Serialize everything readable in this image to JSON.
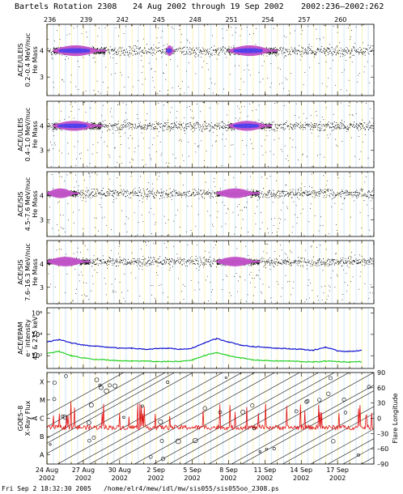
{
  "header": {
    "title": "Bartels Rotation 2308",
    "date_range": "24 Aug 2002 through 19 Sep 2002",
    "doy_range": "2002:236–2002:262"
  },
  "footer": {
    "timestamp": "Fri Sep  2 18:32:30 2005",
    "path": "/home/elr4/mew/idl/mw/sis055/sis055oo_2308.ps"
  },
  "colors": {
    "background_stripe_yellow": "#f8f3b8",
    "background_stripe_blue": "#cfe7f3",
    "density_low": "#000000",
    "density_mid": "#c255c9",
    "density_high": "#3f3ff2",
    "epam_upper": "#1010d0",
    "epam_lower": "#22d022",
    "goes_xray": "#e01010"
  },
  "chart_data": [
    {
      "type": "scatter",
      "panel": "ULEIS 0.2-0.4",
      "ylabel": [
        "ACE/ULEIS",
        "0.2–0.4 MeV/nuc",
        "He Mass"
      ],
      "yticks": [
        "4",
        "3"
      ],
      "bartels_days": [
        "236",
        "239",
        "242",
        "245",
        "248",
        "251",
        "254",
        "257",
        "260"
      ],
      "main_band_mass": 4,
      "secondary_band_mass": 3,
      "dense_intervals_days": [
        [
          236.5,
          240.8
        ],
        [
          251.0,
          255.0
        ],
        [
          245.8,
          246.4
        ]
      ]
    },
    {
      "type": "scatter",
      "panel": "ULEIS 0.4-1.0",
      "ylabel": [
        "ACE/ULEIS",
        "0.4–1.0 MeV/nuc",
        "He Mass"
      ],
      "yticks": [
        "4",
        "3"
      ],
      "main_band_mass": 4,
      "secondary_band_mass": 3,
      "dense_intervals_days": [
        [
          236.5,
          240.5
        ],
        [
          251.0,
          254.5
        ]
      ]
    },
    {
      "type": "scatter",
      "panel": "SIS 4.5-7.6",
      "ylabel": [
        "ACE/SIS",
        "4.5–7.6 MeV/nuc",
        "He Mass"
      ],
      "yticks": [
        "4",
        "3"
      ],
      "main_band_mass": 4.1,
      "secondary_band_mass": 3,
      "dense_intervals_days": [
        [
          236.0,
          238.5
        ],
        [
          250.0,
          253.5
        ]
      ]
    },
    {
      "type": "scatter",
      "panel": "SIS 7.6-16.3",
      "ylabel": [
        "ACE/SIS",
        "7.6–16.3 MeV/nuc",
        "He Mass"
      ],
      "yticks": [
        "4",
        "3"
      ],
      "main_band_mass": 4.1,
      "secondary_band_mass": 3,
      "dense_intervals_days": [
        [
          236.0,
          239.5
        ],
        [
          250.0,
          253.5
        ]
      ]
    },
    {
      "type": "line",
      "panel": "EPAM",
      "ylabel": [
        "ACE/EPAM",
        "e⁻ intensity",
        "45 & 235 keV"
      ],
      "yticks": [
        "10⁶",
        "10⁴",
        "10²"
      ],
      "log_scale": true,
      "x_days": [
        236,
        237,
        238,
        239,
        240,
        241,
        242,
        243,
        244,
        245,
        246,
        247,
        248,
        249,
        250,
        251,
        252,
        253,
        254,
        255,
        256,
        257,
        258,
        259,
        260,
        261,
        262
      ],
      "series": [
        {
          "values": [
            3.3,
            3.5,
            3.2,
            3.0,
            2.9,
            2.8,
            2.7,
            2.7,
            2.6,
            2.65,
            2.7,
            2.6,
            2.7,
            3.2,
            3.6,
            3.3,
            3.0,
            2.85,
            2.8,
            2.7,
            2.65,
            2.6,
            2.5,
            2.8,
            2.45,
            2.4,
            2.5
          ]
        },
        {
          "values": [
            2.2,
            2.4,
            2.0,
            1.8,
            1.65,
            1.6,
            1.5,
            1.5,
            1.5,
            1.45,
            1.45,
            1.45,
            1.6,
            2.0,
            2.3,
            2.0,
            1.8,
            1.6,
            1.55,
            1.5,
            1.5,
            1.45,
            1.4,
            1.5,
            1.45,
            1.4,
            1.45
          ]
        }
      ]
    },
    {
      "type": "line",
      "panel": "GOES",
      "ylabel": [
        "GOES–8",
        "X–Ray Flux",
        "Å"
      ],
      "yticks_left": [
        "X",
        "M",
        "C",
        "B",
        "A"
      ],
      "yticks_right": [
        "90",
        "60",
        "30",
        "0",
        "–30",
        "–60",
        "–90"
      ],
      "ylabel_right": "Flare Longitude",
      "xray_classes_log": {
        "A": -8,
        "B": -7,
        "C": -6,
        "M": -5,
        "X": -4
      },
      "xray_background_class_log": -6.5,
      "flare_longitude_range": [
        -90,
        90
      ]
    }
  ],
  "x_axis": {
    "tick_labels": [
      {
        "day": "24 Aug",
        "year": "2002"
      },
      {
        "day": "27 Aug",
        "year": "2002"
      },
      {
        "day": "30 Aug",
        "year": "2002"
      },
      {
        "day": "2 Sep",
        "year": "2002"
      },
      {
        "day": "5 Sep",
        "year": "2002"
      },
      {
        "day": "8 Sep",
        "year": "2002"
      },
      {
        "day": "11 Sep",
        "year": "2002"
      },
      {
        "day": "14 Sep",
        "year": "2002"
      },
      {
        "day": "17 Sep",
        "year": "2002"
      }
    ]
  }
}
